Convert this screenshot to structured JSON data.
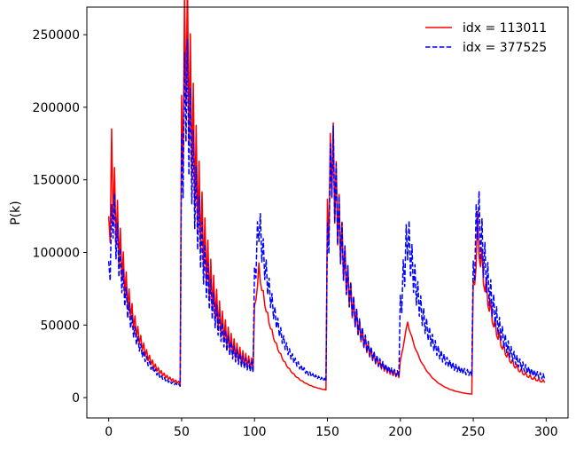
{
  "chart_data": {
    "type": "line",
    "title": "",
    "xlabel": "",
    "ylabel": "P(k)",
    "xlim": [
      -15,
      315
    ],
    "ylim": [
      -14000,
      269000
    ],
    "xticks": [
      0,
      50,
      100,
      150,
      200,
      250,
      300
    ],
    "yticks": [
      0,
      50000,
      100000,
      150000,
      200000,
      250000
    ],
    "grid": false,
    "legend_position": "top-right",
    "segments": [
      {
        "start": 0,
        "end": 49
      },
      {
        "start": 50,
        "end": 99
      },
      {
        "start": 100,
        "end": 149
      },
      {
        "start": 150,
        "end": 199
      },
      {
        "start": 200,
        "end": 249
      },
      {
        "start": 250,
        "end": 299
      }
    ],
    "series": [
      {
        "name": "idx = 113011",
        "color": "#ff0000",
        "dash": "solid",
        "segments": [
          {
            "start_value": 105000,
            "peak_pos": 2,
            "peak_value": 157000,
            "end_value": 6000,
            "osc_amp": 0.38,
            "osc_period": 2,
            "tail_amp": 0.12
          },
          {
            "start_value": 170000,
            "peak_pos": 3,
            "peak_value": 257000,
            "end_value": 16000,
            "osc_amp": 0.45,
            "osc_period": 2,
            "tail_amp": 0.35
          },
          {
            "start_value": 60000,
            "peak_pos": 3,
            "peak_value": 88000,
            "end_value": 3000,
            "osc_amp": 0.12,
            "osc_period": 3,
            "tail_amp": 0.03
          },
          {
            "start_value": 113000,
            "peak_pos": 3,
            "peak_value": 171000,
            "end_value": 11000,
            "osc_amp": 0.42,
            "osc_period": 2,
            "tail_amp": 0.18
          },
          {
            "start_value": 25000,
            "peak_pos": 5,
            "peak_value": 52000,
            "end_value": 1000,
            "osc_amp": 0.05,
            "osc_period": 4,
            "tail_amp": 0.02
          },
          {
            "start_value": 70000,
            "peak_pos": 3,
            "peak_value": 112000,
            "end_value": 8000,
            "osc_amp": 0.3,
            "osc_period": 3,
            "tail_amp": 0.2
          }
        ]
      },
      {
        "name": "idx = 377525",
        "color": "#0000ff",
        "dash": "dashed",
        "segments": [
          {
            "start_value": 80000,
            "peak_pos": 3,
            "peak_value": 131000,
            "end_value": 5000,
            "osc_amp": 0.35,
            "osc_period": 2,
            "tail_amp": 0.12
          },
          {
            "start_value": 150000,
            "peak_pos": 3,
            "peak_value": 221000,
            "end_value": 15000,
            "osc_amp": 0.42,
            "osc_period": 2,
            "tail_amp": 0.3
          },
          {
            "start_value": 80000,
            "peak_pos": 3,
            "peak_value": 122000,
            "end_value": 9000,
            "osc_amp": 0.25,
            "osc_period": 2,
            "tail_amp": 0.15
          },
          {
            "start_value": 100000,
            "peak_pos": 3,
            "peak_value": 170000,
            "end_value": 12000,
            "osc_amp": 0.4,
            "osc_period": 2,
            "tail_amp": 0.2
          },
          {
            "start_value": 60000,
            "peak_pos": 5,
            "peak_value": 113000,
            "end_value": 14000,
            "osc_amp": 0.35,
            "osc_period": 2,
            "tail_amp": 0.2
          },
          {
            "start_value": 80000,
            "peak_pos": 3,
            "peak_value": 131000,
            "end_value": 11000,
            "osc_amp": 0.35,
            "osc_period": 2,
            "tail_amp": 0.25
          }
        ]
      }
    ]
  }
}
